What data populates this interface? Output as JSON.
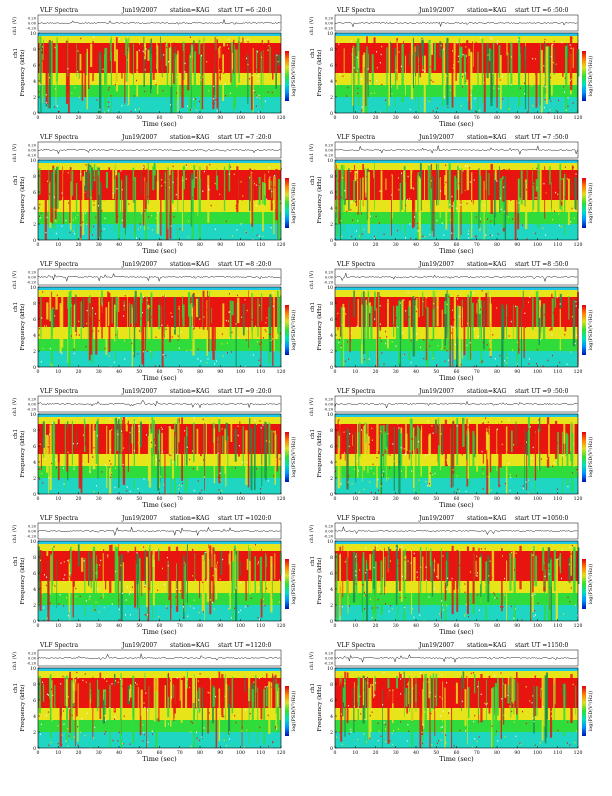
{
  "chart_data": [
    {
      "type": "heatmap",
      "heading": "VLF Spectra",
      "date": "Jun19/2007",
      "station": "station=KAG",
      "start": "start  UT  =6 :20:0",
      "xlabel": "Time  (sec)",
      "ylabel_top": "ch1 (V)",
      "ylabel": "Frequency  (kHz)",
      "ylabel_side": "ch1",
      "colorbar_label": "log(PSD(V²/Hz))",
      "x_ticks": [
        "0",
        "10",
        "20",
        "30",
        "40",
        "50",
        "60",
        "70",
        "80",
        "90",
        "100",
        "110",
        "120"
      ],
      "y_ticks": [
        "0",
        "2",
        "4",
        "6",
        "8",
        "10"
      ],
      "wave_ticks": [
        "0.20",
        "0.00",
        "-0.20"
      ],
      "xlim": [
        0,
        120
      ],
      "ylim": [
        0,
        10
      ]
    },
    {
      "type": "heatmap",
      "heading": "VLF Spectra",
      "date": "Jun19/2007",
      "station": "station=KAG",
      "start": "start  UT  =6 :50:0",
      "xlabel": "Time  (sec)",
      "ylabel_top": "ch1 (V)",
      "ylabel": "Frequency  (kHz)",
      "ylabel_side": "ch1",
      "colorbar_label": "log(PSD(V²/Hz))",
      "x_ticks": [
        "0",
        "10",
        "20",
        "30",
        "40",
        "50",
        "60",
        "70",
        "80",
        "90",
        "100",
        "110",
        "120"
      ],
      "y_ticks": [
        "0",
        "2",
        "4",
        "6",
        "8",
        "10"
      ],
      "wave_ticks": [
        "0.20",
        "0.00",
        "-0.20"
      ],
      "xlim": [
        0,
        120
      ],
      "ylim": [
        0,
        10
      ]
    },
    {
      "type": "heatmap",
      "heading": "VLF Spectra",
      "date": "Jun19/2007",
      "station": "station=KAG",
      "start": "start  UT  =7 :20:0",
      "xlabel": "Time  (sec)",
      "ylabel_top": "ch1 (V)",
      "ylabel": "Frequency  (kHz)",
      "ylabel_side": "ch1",
      "colorbar_label": "log(PSD(V²/Hz))",
      "x_ticks": [
        "0",
        "10",
        "20",
        "30",
        "40",
        "50",
        "60",
        "70",
        "80",
        "90",
        "100",
        "110",
        "120"
      ],
      "y_ticks": [
        "0",
        "2",
        "4",
        "6",
        "8",
        "10"
      ],
      "wave_ticks": [
        "0.20",
        "0.00",
        "-0.20"
      ],
      "xlim": [
        0,
        120
      ],
      "ylim": [
        0,
        10
      ]
    },
    {
      "type": "heatmap",
      "heading": "VLF Spectra",
      "date": "Jun19/2007",
      "station": "station=KAG",
      "start": "start  UT  =7 :50:0",
      "xlabel": "Time  (sec)",
      "ylabel_top": "ch1 (V)",
      "ylabel": "Frequency  (kHz)",
      "ylabel_side": "ch1",
      "colorbar_label": "log(PSD(V²/Hz))",
      "x_ticks": [
        "0",
        "10",
        "20",
        "30",
        "40",
        "50",
        "60",
        "70",
        "80",
        "90",
        "100",
        "110",
        "120"
      ],
      "y_ticks": [
        "0",
        "2",
        "4",
        "6",
        "8",
        "10"
      ],
      "wave_ticks": [
        "0.20",
        "0.00",
        "-0.20"
      ],
      "xlim": [
        0,
        120
      ],
      "ylim": [
        0,
        10
      ]
    },
    {
      "type": "heatmap",
      "heading": "VLF Spectra",
      "date": "Jun19/2007",
      "station": "station=KAG",
      "start": "start  UT  =8 :20:0",
      "xlabel": "Time  (sec)",
      "ylabel_top": "ch1 (V)",
      "ylabel": "Frequency  (kHz)",
      "ylabel_side": "ch1",
      "colorbar_label": "log(PSD(V²/Hz))",
      "x_ticks": [
        "0",
        "10",
        "20",
        "30",
        "40",
        "50",
        "60",
        "70",
        "80",
        "90",
        "100",
        "110",
        "120"
      ],
      "y_ticks": [
        "0",
        "2",
        "4",
        "6",
        "8",
        "10"
      ],
      "wave_ticks": [
        "0.20",
        "0.00",
        "-0.20"
      ],
      "xlim": [
        0,
        120
      ],
      "ylim": [
        0,
        10
      ]
    },
    {
      "type": "heatmap",
      "heading": "VLF Spectra",
      "date": "Jun19/2007",
      "station": "station=KAG",
      "start": "start  UT  =8 :50:0",
      "xlabel": "Time  (sec)",
      "ylabel_top": "ch1 (V)",
      "ylabel": "Frequency  (kHz)",
      "ylabel_side": "ch1",
      "colorbar_label": "log(PSD(V²/Hz))",
      "x_ticks": [
        "0",
        "10",
        "20",
        "30",
        "40",
        "50",
        "60",
        "70",
        "80",
        "90",
        "100",
        "110",
        "120"
      ],
      "y_ticks": [
        "0",
        "2",
        "4",
        "6",
        "8",
        "10"
      ],
      "wave_ticks": [
        "0.20",
        "0.00",
        "-0.20"
      ],
      "xlim": [
        0,
        120
      ],
      "ylim": [
        0,
        10
      ]
    },
    {
      "type": "heatmap",
      "heading": "VLF Spectra",
      "date": "Jun19/2007",
      "station": "station=KAG",
      "start": "start  UT  =9 :20:0",
      "xlabel": "Time  (sec)",
      "ylabel_top": "ch1 (V)",
      "ylabel": "Frequency  (kHz)",
      "ylabel_side": "ch1",
      "colorbar_label": "log(PSD(V²/Hz))",
      "x_ticks": [
        "0",
        "10",
        "20",
        "30",
        "40",
        "50",
        "60",
        "70",
        "80",
        "90",
        "100",
        "110",
        "120"
      ],
      "y_ticks": [
        "0",
        "2",
        "4",
        "6",
        "8",
        "10"
      ],
      "wave_ticks": [
        "0.20",
        "0.00",
        "-0.20"
      ],
      "xlim": [
        0,
        120
      ],
      "ylim": [
        0,
        10
      ]
    },
    {
      "type": "heatmap",
      "heading": "VLF Spectra",
      "date": "Jun19/2007",
      "station": "station=KAG",
      "start": "start  UT  =9 :50:0",
      "xlabel": "Time  (sec)",
      "ylabel_top": "ch1 (V)",
      "ylabel": "Frequency  (kHz)",
      "ylabel_side": "ch1",
      "colorbar_label": "log(PSD(V²/Hz))",
      "x_ticks": [
        "0",
        "10",
        "20",
        "30",
        "40",
        "50",
        "60",
        "70",
        "80",
        "90",
        "100",
        "110",
        "120"
      ],
      "y_ticks": [
        "0",
        "2",
        "4",
        "6",
        "8",
        "10"
      ],
      "wave_ticks": [
        "0.20",
        "0.00",
        "-0.20"
      ],
      "xlim": [
        0,
        120
      ],
      "ylim": [
        0,
        10
      ]
    },
    {
      "type": "heatmap",
      "heading": "VLF Spectra",
      "date": "Jun19/2007",
      "station": "station=KAG",
      "start": "start  UT  =1020:0",
      "xlabel": "Time  (sec)",
      "ylabel_top": "ch1 (V)",
      "ylabel": "Frequency  (kHz)",
      "ylabel_side": "ch1",
      "colorbar_label": "log(PSD(V²/Hz))",
      "x_ticks": [
        "0",
        "10",
        "20",
        "30",
        "40",
        "50",
        "60",
        "70",
        "80",
        "90",
        "100",
        "110",
        "120"
      ],
      "y_ticks": [
        "0",
        "2",
        "4",
        "6",
        "8",
        "10"
      ],
      "wave_ticks": [
        "0.20",
        "0.00",
        "-0.20"
      ],
      "xlim": [
        0,
        120
      ],
      "ylim": [
        0,
        10
      ]
    },
    {
      "type": "heatmap",
      "heading": "VLF Spectra",
      "date": "Jun19/2007",
      "station": "station=KAG",
      "start": "start  UT  =1050:0",
      "xlabel": "Time  (sec)",
      "ylabel_top": "ch1 (V)",
      "ylabel": "Frequency  (kHz)",
      "ylabel_side": "ch1",
      "colorbar_label": "log(PSD(V²/Hz))",
      "x_ticks": [
        "0",
        "10",
        "20",
        "30",
        "40",
        "50",
        "60",
        "70",
        "80",
        "90",
        "100",
        "110",
        "120"
      ],
      "y_ticks": [
        "0",
        "2",
        "4",
        "6",
        "8",
        "10"
      ],
      "wave_ticks": [
        "0.20",
        "0.00",
        "-0.20"
      ],
      "xlim": [
        0,
        120
      ],
      "ylim": [
        0,
        10
      ]
    },
    {
      "type": "heatmap",
      "heading": "VLF Spectra",
      "date": "Jun19/2007",
      "station": "station=KAG",
      "start": "start  UT  =1120:0",
      "xlabel": "Time  (sec)",
      "ylabel_top": "ch1 (V)",
      "ylabel": "Frequency  (kHz)",
      "ylabel_side": "ch1",
      "colorbar_label": "log(PSD(V²/Hz))",
      "x_ticks": [
        "0",
        "10",
        "20",
        "30",
        "40",
        "50",
        "60",
        "70",
        "80",
        "90",
        "100",
        "110",
        "120"
      ],
      "y_ticks": [
        "0",
        "2",
        "4",
        "6",
        "8",
        "10"
      ],
      "wave_ticks": [
        "0.20",
        "0.00",
        "-0.20"
      ],
      "xlim": [
        0,
        120
      ],
      "ylim": [
        0,
        10
      ]
    },
    {
      "type": "heatmap",
      "heading": "VLF Spectra",
      "date": "Jun19/2007",
      "station": "station=KAG",
      "start": "start  UT  =1150:0",
      "xlabel": "Time  (sec)",
      "ylabel_top": "ch1 (V)",
      "ylabel": "Frequency  (kHz)",
      "ylabel_side": "ch1",
      "colorbar_label": "log(PSD(V²/Hz))",
      "x_ticks": [
        "0",
        "10",
        "20",
        "30",
        "40",
        "50",
        "60",
        "70",
        "80",
        "90",
        "100",
        "110",
        "120"
      ],
      "y_ticks": [
        "0",
        "2",
        "4",
        "6",
        "8",
        "10"
      ],
      "wave_ticks": [
        "0.20",
        "0.00",
        "-0.20"
      ],
      "xlim": [
        0,
        120
      ],
      "ylim": [
        0,
        10
      ]
    }
  ],
  "colors": {
    "band_top": "#22c7e6",
    "yellow": "#e8e41a",
    "red": "#e81410",
    "green": "#2fdc3c",
    "cyan": "#1fd6c2",
    "colorbar": [
      "#0010b0",
      "#0090ff",
      "#00e0c0",
      "#30e030",
      "#e0e020",
      "#ff8000",
      "#e00010"
    ]
  }
}
